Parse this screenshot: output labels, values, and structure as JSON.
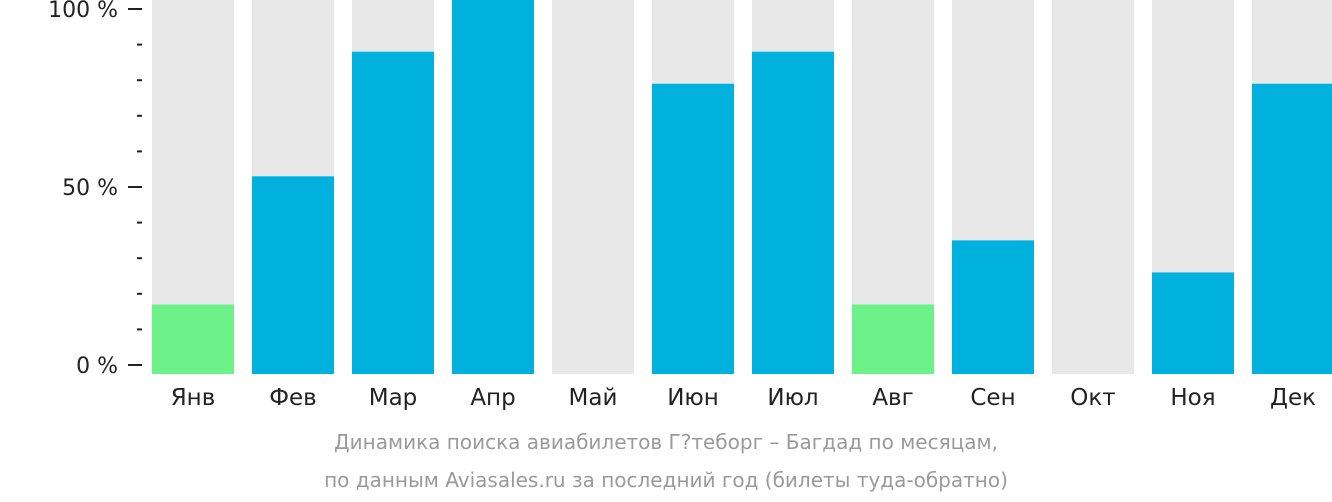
{
  "chart_data": {
    "type": "bar",
    "categories": [
      "Янв",
      "Фев",
      "Мар",
      "Апр",
      "Май",
      "Июн",
      "Июл",
      "Авг",
      "Сен",
      "Окт",
      "Ноя",
      "Дек"
    ],
    "values": [
      17,
      53,
      88,
      104,
      0,
      79,
      88,
      17,
      35,
      0,
      26,
      79
    ],
    "highlight": [
      true,
      false,
      false,
      false,
      false,
      false,
      false,
      true,
      false,
      false,
      false,
      false
    ],
    "ylim": [
      0,
      100
    ],
    "yticks": [
      {
        "value": 0,
        "label": "0 %"
      },
      {
        "value": 50,
        "label": "50 %"
      },
      {
        "value": 100,
        "label": "100 %"
      }
    ],
    "minor_tick_step": 10,
    "grid": false,
    "legend": "none",
    "colors": {
      "bar": "#00b0dd",
      "highlight": "#6cf288",
      "background_bar": "#e8e8e8",
      "axis": "#222222"
    }
  },
  "caption": {
    "line1": "Динамика поиска авиабилетов Г?теборг – Багдад по месяцам,",
    "line2": "по данным Aviasales.ru за последний год (билеты туда-обратно)"
  }
}
